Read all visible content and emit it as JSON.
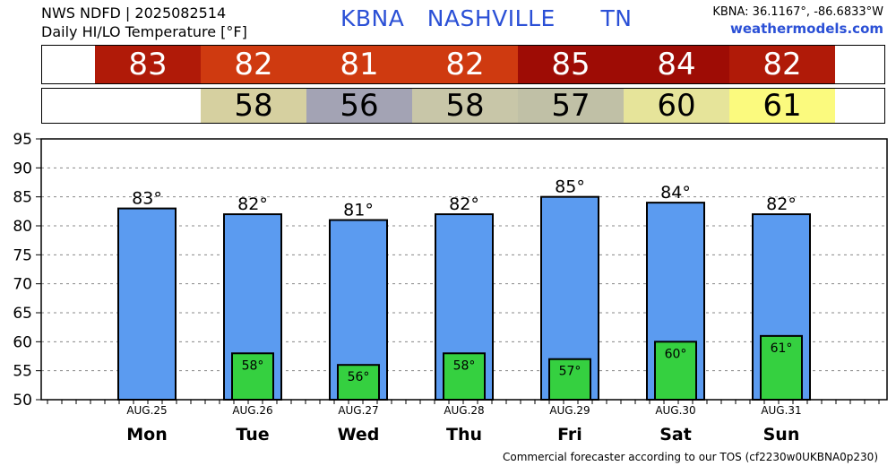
{
  "header": {
    "line1": "NWS NDFD | 2025082514",
    "line2": "Daily HI/LO Temperature [°F]",
    "station_title": "KBNA   NASHVILLE      TN",
    "coords": "KBNA: 36.1167°, -86.6833°W",
    "site": "weathermodels.com"
  },
  "footer": "Commercial forecaster according to our TOS (cf2230w0UKBNA0p230)",
  "strips": {
    "hi": [
      {
        "value": "83",
        "color": "#b01a08"
      },
      {
        "value": "82",
        "color": "#cf3a10"
      },
      {
        "value": "81",
        "color": "#cf3a10"
      },
      {
        "value": "82",
        "color": "#cf3a10"
      },
      {
        "value": "85",
        "color": "#9e0c05"
      },
      {
        "value": "84",
        "color": "#9e0c05"
      },
      {
        "value": "82",
        "color": "#b01a08"
      }
    ],
    "lo": [
      {
        "value": "",
        "color": "#ffffff"
      },
      {
        "value": "58",
        "color": "#d6d0a0"
      },
      {
        "value": "56",
        "color": "#a3a3b4"
      },
      {
        "value": "58",
        "color": "#c8c6a8"
      },
      {
        "value": "57",
        "color": "#c0c0a6"
      },
      {
        "value": "60",
        "color": "#e6e49a"
      },
      {
        "value": "61",
        "color": "#fbfa7e"
      }
    ]
  },
  "colors": {
    "hi_bar": "#5b9bf0",
    "lo_bar": "#35d040",
    "grid": "#888888"
  },
  "chart_data": {
    "type": "bar",
    "categories": [
      "Mon",
      "Tue",
      "Wed",
      "Thu",
      "Fri",
      "Sat",
      "Sun"
    ],
    "dates": [
      "AUG.25",
      "AUG.26",
      "AUG.27",
      "AUG.28",
      "AUG.29",
      "AUG.30",
      "AUG.31"
    ],
    "series": [
      {
        "values": [
          83,
          82,
          81,
          82,
          85,
          84,
          82
        ],
        "labels": [
          "83°",
          "82°",
          "81°",
          "82°",
          "85°",
          "84°",
          "82°"
        ]
      },
      {
        "values": [
          null,
          58,
          56,
          58,
          57,
          60,
          61
        ],
        "labels": [
          "",
          "58°",
          "56°",
          "58°",
          "57°",
          "60°",
          "61°"
        ]
      }
    ],
    "ylim": [
      50,
      95
    ],
    "yticks": [
      50,
      55,
      60,
      65,
      70,
      75,
      80,
      85,
      90,
      95
    ],
    "grid": true
  }
}
